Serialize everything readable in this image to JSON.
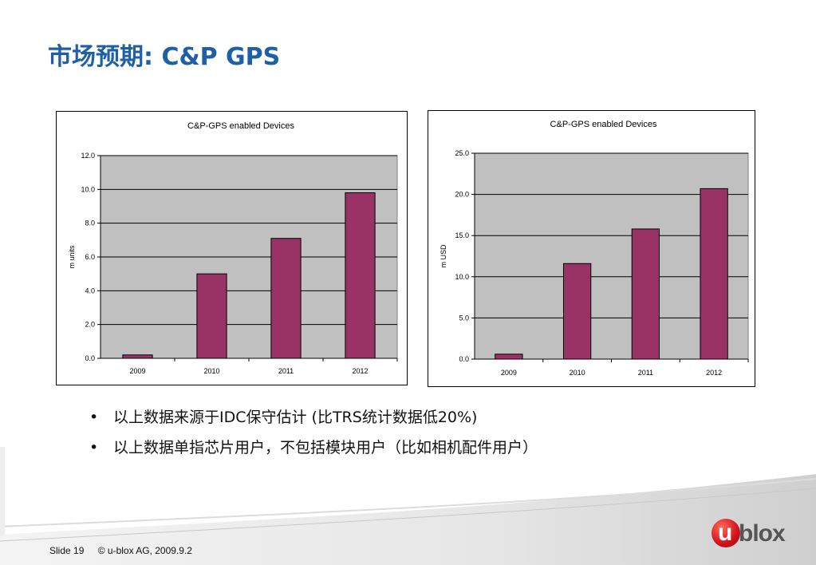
{
  "title": "市场预期: C&P GPS",
  "chart_data": [
    {
      "type": "bar",
      "title": "C&P-GPS enabled Devices",
      "ylabel": "m units",
      "xlabel": "",
      "categories": [
        "2009",
        "2010",
        "2011",
        "2012"
      ],
      "values": [
        0.2,
        5.0,
        7.1,
        9.8
      ],
      "ylim": [
        0,
        12
      ],
      "yticks": [
        0.0,
        2.0,
        4.0,
        6.0,
        8.0,
        10.0,
        12.0
      ],
      "ytick_labels": [
        "0.0",
        "2.0",
        "4.0",
        "6.0",
        "8.0",
        "10.0",
        "12.0"
      ],
      "grid": true,
      "bar_color": "#993366",
      "plot_bg": "#c0c0c0"
    },
    {
      "type": "bar",
      "title": "C&P-GPS enabled Devices",
      "ylabel": "m USD",
      "xlabel": "",
      "categories": [
        "2009",
        "2010",
        "2011",
        "2012"
      ],
      "values": [
        0.6,
        11.6,
        15.8,
        20.7
      ],
      "ylim": [
        0,
        25
      ],
      "yticks": [
        0.0,
        5.0,
        10.0,
        15.0,
        20.0,
        25.0
      ],
      "ytick_labels": [
        "0.0",
        "5.0",
        "10.0",
        "15.0",
        "20.0",
        "25.0"
      ],
      "grid": true,
      "bar_color": "#993366",
      "plot_bg": "#c0c0c0"
    }
  ],
  "bullets": [
    "以上数据来源于IDC保守估计 (比TRS统计数据低20%)",
    "以上数据单指芯片用户，不包括模块用户（比如相机配件用户）"
  ],
  "bullet_symbol": "•",
  "footer": {
    "slide": "Slide 19",
    "copyright": "© u-blox AG,  2009.9.2"
  },
  "logo": {
    "u": "u",
    "text": "blox"
  }
}
